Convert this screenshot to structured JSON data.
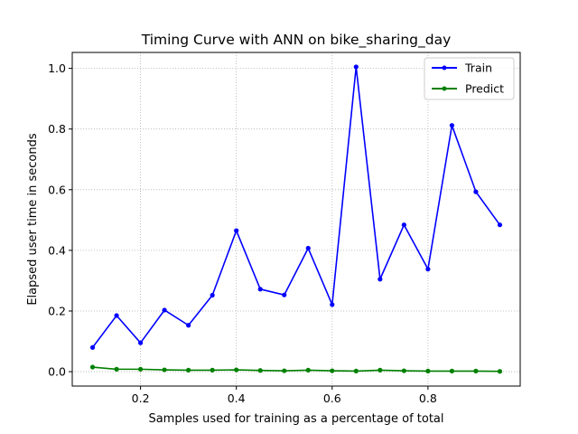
{
  "chart_data": {
    "type": "line",
    "title": "Timing Curve with ANN on bike_sharing_day",
    "xlabel": "Samples used for training as a percentage of total",
    "ylabel": "Elapsed user time in seconds",
    "x": [
      0.1,
      0.15,
      0.2,
      0.25,
      0.3,
      0.35,
      0.4,
      0.45,
      0.5,
      0.55,
      0.6,
      0.65,
      0.7,
      0.75,
      0.8,
      0.85,
      0.9,
      0.95
    ],
    "xlim": [
      0.0575,
      0.9925
    ],
    "ylim": [
      -0.0475,
      1.0525
    ],
    "xticks": [
      0.2,
      0.4,
      0.6,
      0.8
    ],
    "xtick_labels": [
      "0.2",
      "0.4",
      "0.6",
      "0.8"
    ],
    "yticks": [
      0.0,
      0.2,
      0.4,
      0.6,
      0.8,
      1.0
    ],
    "ytick_labels": [
      "0.0",
      "0.2",
      "0.4",
      "0.6",
      "0.8",
      "1.0"
    ],
    "grid": true,
    "legend_position": "top-right",
    "series": [
      {
        "name": "Train",
        "color": "#0000ff",
        "marker": "circle",
        "values": [
          0.08,
          0.185,
          0.095,
          0.203,
          0.153,
          0.252,
          0.465,
          0.272,
          0.253,
          0.407,
          0.221,
          1.005,
          0.305,
          0.484,
          0.338,
          0.812,
          0.593,
          0.484
        ]
      },
      {
        "name": "Predict",
        "color": "#008000",
        "marker": "circle",
        "values": [
          0.015,
          0.008,
          0.008,
          0.006,
          0.005,
          0.005,
          0.006,
          0.004,
          0.003,
          0.005,
          0.003,
          0.002,
          0.005,
          0.003,
          0.002,
          0.002,
          0.002,
          0.001
        ]
      }
    ]
  }
}
